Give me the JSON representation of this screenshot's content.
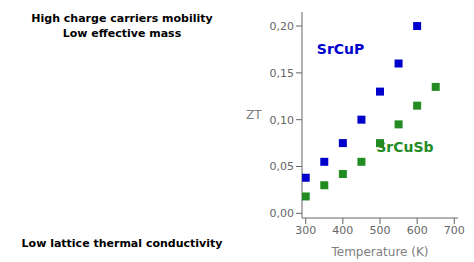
{
  "chart_data": {
    "type": "scatter",
    "xlabel": "Temperature (K)",
    "ylabel": "ZT",
    "series": [
      {
        "name": "SrCuP",
        "color": "#0000cc",
        "marker": "square",
        "x": [
          300,
          350,
          400,
          450,
          500,
          550,
          600
        ],
        "values": [
          0.038,
          0.055,
          0.075,
          0.1,
          0.13,
          0.16,
          0.2
        ]
      },
      {
        "name": "SrCuSb",
        "color": "#228B22",
        "marker": "square",
        "x": [
          300,
          350,
          400,
          450,
          500,
          550,
          600,
          650
        ],
        "values": [
          0.018,
          0.03,
          0.042,
          0.055,
          0.075,
          0.095,
          0.115,
          0.135
        ]
      }
    ],
    "xlim": [
      290,
      710
    ],
    "ylim": [
      -0.005,
      0.215
    ],
    "xticks": [
      300,
      400,
      500,
      600,
      700
    ],
    "yticks": [
      {
        "value": 0.0,
        "label": "0,00"
      },
      {
        "value": 0.05,
        "label": "0,05"
      },
      {
        "value": 0.1,
        "label": "0,10"
      },
      {
        "value": 0.15,
        "label": "0,15"
      },
      {
        "value": 0.2,
        "label": "0,20"
      }
    ],
    "grid": false,
    "annotations": [
      {
        "text": "SrCuP",
        "x": 330,
        "y": 0.17,
        "color": "#0000cc"
      },
      {
        "text": "SrCuSb",
        "x": 490,
        "y": 0.065,
        "color": "#228B22"
      },
      {
        "text": "High charge carriers mobility"
      },
      {
        "text": "Low effective mass"
      },
      {
        "text": "Low lattice thermal conductivity"
      }
    ]
  }
}
